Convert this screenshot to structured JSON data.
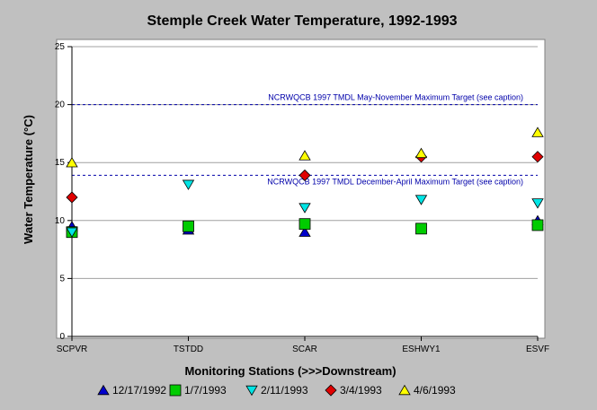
{
  "chart_data": {
    "type": "scatter",
    "title": "Stemple Creek Water Temperature, 1992-1993",
    "xlabel": "Monitoring Stations (>>>Downstream)",
    "ylabel": "Water Temperature (°C)",
    "ylim": [
      0,
      25
    ],
    "yticks": [
      "0",
      "5",
      "10",
      "15",
      "20",
      "25"
    ],
    "categories": [
      "SCPVR",
      "TSTDD",
      "SCAR",
      "ESHWY1",
      "ESVF"
    ],
    "grid": true,
    "legend_position": "bottom",
    "reference_lines": [
      {
        "label": "NCRWQCB 1997 TMDL May-November Maximum Target (see caption)",
        "value": 20,
        "color": "#0000aa"
      },
      {
        "label": "NCRWQCB 1997 TMDL December-April Maximum Target (see caption)",
        "value": 13.9,
        "color": "#0000aa"
      }
    ],
    "series": [
      {
        "name": "12/17/1992",
        "marker": "triangle-up",
        "color": "#0000cc",
        "values": [
          9.5,
          9.2,
          9.0,
          null,
          10.0
        ]
      },
      {
        "name": "1/7/1993",
        "marker": "square",
        "color": "#00cc00",
        "values": [
          9.0,
          9.5,
          9.7,
          9.3,
          9.6
        ]
      },
      {
        "name": "2/11/1993",
        "marker": "triangle-down",
        "color": "#00e5e5",
        "values": [
          9.0,
          13.1,
          11.1,
          11.8,
          11.5
        ]
      },
      {
        "name": "3/4/1993",
        "marker": "diamond",
        "color": "#e00000",
        "values": [
          12.0,
          null,
          13.9,
          15.5,
          15.5
        ]
      },
      {
        "name": "4/6/1993",
        "marker": "triangle-up",
        "color": "#ffff00",
        "values": [
          15.0,
          null,
          15.6,
          15.8,
          17.6
        ]
      }
    ]
  }
}
